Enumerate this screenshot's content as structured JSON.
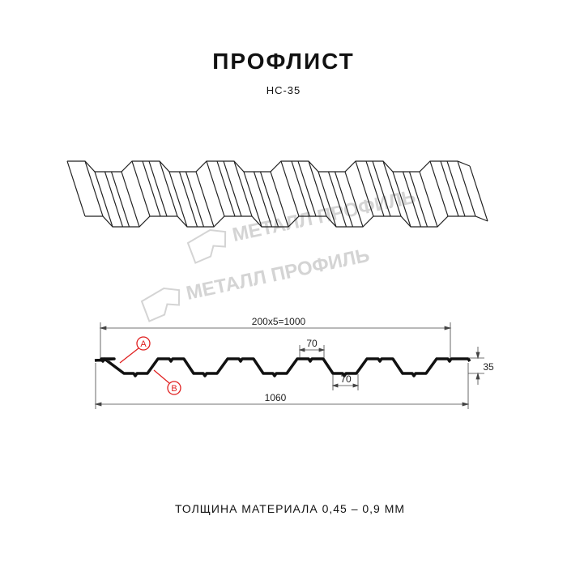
{
  "header": {
    "title": "ПРОФЛИСТ",
    "subtitle": "НС-35"
  },
  "watermark": {
    "text": "МЕТАЛЛ ПРОФИЛЬ",
    "color": "#d0d0d0"
  },
  "dimensions": {
    "pitch": "200x5=1000",
    "total_width": "1060",
    "height": "35",
    "top_flat": "70",
    "bottom_flat": "70"
  },
  "markers": {
    "a": "A",
    "b": "B",
    "color": "#e02020"
  },
  "footer": {
    "thickness": "ТОЛЩИНА МАТЕРИАЛА 0,45 – 0,9 ММ"
  }
}
